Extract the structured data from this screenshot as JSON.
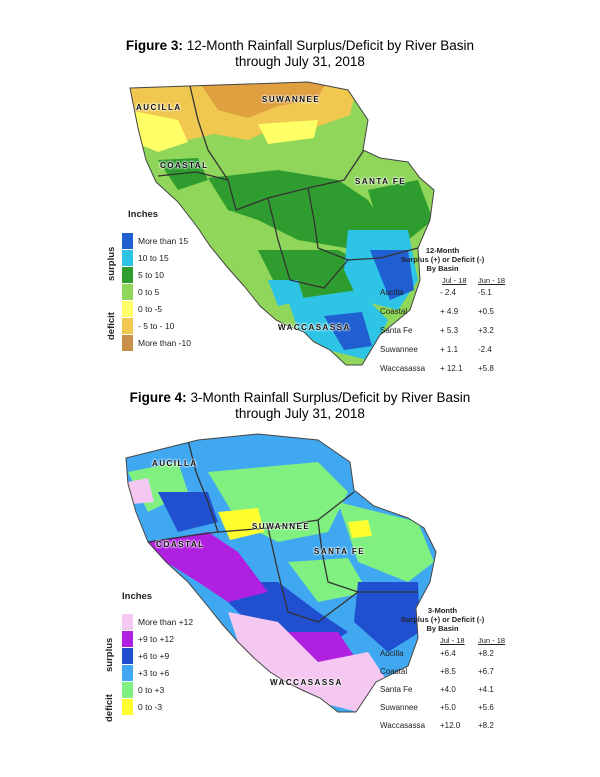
{
  "figure3": {
    "title_bold": "Figure 3:",
    "title_rest": " 12-Month Rainfall Surplus/Deficit by River Basin",
    "title_line2": "through July 31, 2018",
    "basin_labels": [
      "AUCILLA",
      "SUWANNEE",
      "COASTAL",
      "SANTA FE",
      "WACCASASSA"
    ],
    "legend": {
      "units": "Inches",
      "surplus_label": "surplus",
      "deficit_label": "deficit",
      "items": [
        {
          "label": "More than 15",
          "color": "#1f5fd1"
        },
        {
          "label": "10 to 15",
          "color": "#2ec4e6"
        },
        {
          "label": "5 to 10",
          "color": "#2e9c2e"
        },
        {
          "label": "0 to 5",
          "color": "#8fd65a"
        },
        {
          "label": "0 to -5",
          "color": "#ffff66"
        },
        {
          "label": "- 5 to - 10",
          "color": "#f0c850"
        },
        {
          "label": "More than -10",
          "color": "#c8904a"
        }
      ]
    },
    "table": {
      "title_lines": [
        "12-Month",
        "Surplus (+) or Deficit (-)",
        "By Basin"
      ],
      "col1": "Jul - 18",
      "col2": "Jun - 18",
      "rows": [
        {
          "basin": "Aucilla",
          "jul": "- 2.4",
          "jun": "-5.1"
        },
        {
          "basin": "Coastal",
          "jul": "+ 4.9",
          "jun": "+0.5"
        },
        {
          "basin": "Santa Fe",
          "jul": "+ 5.3",
          "jun": "+3.2"
        },
        {
          "basin": "Suwannee",
          "jul": "+ 1.1",
          "jun": "-2.4"
        },
        {
          "basin": "Waccasassa",
          "jul": "+ 12.1",
          "jun": "+5.8"
        }
      ]
    }
  },
  "figure4": {
    "title_bold": "Figure 4:",
    "title_rest": " 3-Month Rainfall Surplus/Deficit by River Basin",
    "title_line2": "through July 31, 2018",
    "basin_labels": [
      "AUCILLA",
      "SUWANNEE",
      "COASTAL",
      "SANTA FE",
      "WACCASASSA"
    ],
    "legend": {
      "units": "Inches",
      "surplus_label": "surplus",
      "deficit_label": "deficit",
      "items": [
        {
          "label": "More than +12",
          "color": "#f4c8f0"
        },
        {
          "label": "+9 to +12",
          "color": "#b020e0"
        },
        {
          "label": "+6 to +9",
          "color": "#2050d0"
        },
        {
          "label": "+3 to +6",
          "color": "#40a8f0"
        },
        {
          "label": "0 to +3",
          "color": "#80f080"
        },
        {
          "label": "0 to -3",
          "color": "#ffff30"
        }
      ]
    },
    "table": {
      "title_lines": [
        "3-Month",
        "Surplus (+) or Deficit (-)",
        "By Basin"
      ],
      "col1": "Jul - 18",
      "col2": "Jun - 18",
      "rows": [
        {
          "basin": "Aucilla",
          "jul": "+6.4",
          "jun": "+8.2"
        },
        {
          "basin": "Coastal",
          "jul": "+8.5",
          "jun": "+6.7"
        },
        {
          "basin": "Santa Fe",
          "jul": "+4.0",
          "jun": "+4.1"
        },
        {
          "basin": "Suwannee",
          "jul": "+5.0",
          "jun": "+5.6"
        },
        {
          "basin": "Waccasassa",
          "jul": "+12.0",
          "jun": "+8.2"
        }
      ]
    }
  }
}
